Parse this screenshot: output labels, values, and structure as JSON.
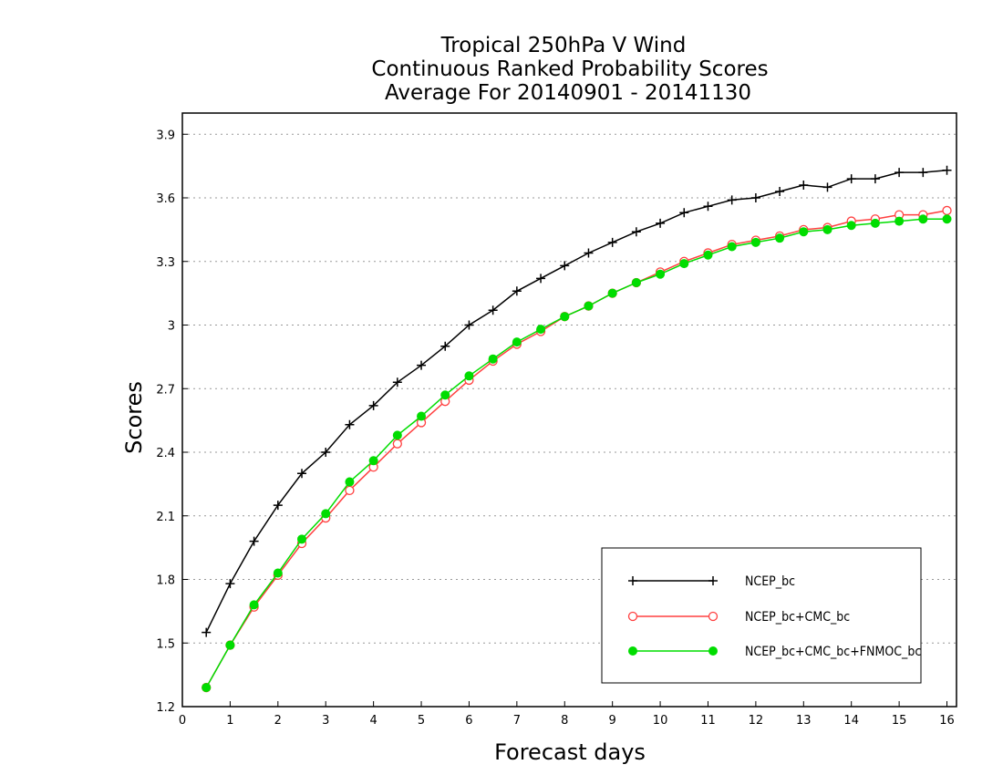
{
  "chart_data": {
    "type": "line",
    "title": [
      "Tropical 250hPa V Wind",
      "Continuous Ranked Probability Scores",
      "Average For 20140901 - 20141130"
    ],
    "xlabel": "Forecast days",
    "ylabel": "Scores",
    "xlim": [
      0,
      16.2
    ],
    "ylim": [
      1.2,
      4.0
    ],
    "xticks": [
      0,
      1,
      2,
      3,
      4,
      5,
      6,
      7,
      8,
      9,
      10,
      11,
      12,
      13,
      14,
      15,
      16
    ],
    "yticks": [
      1.2,
      1.5,
      1.8,
      2.1,
      2.4,
      2.7,
      3.0,
      3.3,
      3.6,
      3.9
    ],
    "ytick_labels": [
      "1.2",
      "1.5",
      "1.8",
      "2.1",
      "2.4",
      "2.7",
      "3",
      "3.3",
      "3.6",
      "3.9"
    ],
    "grid": "horizontal dotted",
    "legend_position": "bottom-right",
    "x": [
      0.5,
      1,
      1.5,
      2,
      2.5,
      3,
      3.5,
      4,
      4.5,
      5,
      5.5,
      6,
      6.5,
      7,
      7.5,
      8,
      8.5,
      9,
      9.5,
      10,
      10.5,
      11,
      11.5,
      12,
      12.5,
      13,
      13.5,
      14,
      14.5,
      15,
      15.5,
      16
    ],
    "series": [
      {
        "name": "NCEP_bc",
        "color": "#000000",
        "marker": "plus",
        "values": [
          1.55,
          1.78,
          1.98,
          2.15,
          2.3,
          2.4,
          2.53,
          2.62,
          2.73,
          2.81,
          2.9,
          3.0,
          3.07,
          3.16,
          3.22,
          3.28,
          3.34,
          3.39,
          3.44,
          3.48,
          3.53,
          3.56,
          3.59,
          3.6,
          3.63,
          3.66,
          3.65,
          3.69,
          3.69,
          3.72,
          3.72,
          3.73
        ]
      },
      {
        "name": "NCEP_bc+CMC_bc",
        "color": "#ff4040",
        "marker": "open-circle",
        "values": [
          1.29,
          1.49,
          1.67,
          1.82,
          1.97,
          2.09,
          2.22,
          2.33,
          2.44,
          2.54,
          2.64,
          2.74,
          2.83,
          2.91,
          2.97,
          3.04,
          3.09,
          3.15,
          3.2,
          3.25,
          3.3,
          3.34,
          3.38,
          3.4,
          3.42,
          3.45,
          3.46,
          3.49,
          3.5,
          3.52,
          3.52,
          3.54
        ]
      },
      {
        "name": "NCEP_bc+CMC_bc+FNMOC_bc",
        "color": "#00dd00",
        "marker": "filled-circle",
        "values": [
          1.29,
          1.49,
          1.68,
          1.83,
          1.99,
          2.11,
          2.26,
          2.36,
          2.48,
          2.57,
          2.67,
          2.76,
          2.84,
          2.92,
          2.98,
          3.04,
          3.09,
          3.15,
          3.2,
          3.24,
          3.29,
          3.33,
          3.37,
          3.39,
          3.41,
          3.44,
          3.45,
          3.47,
          3.48,
          3.49,
          3.5,
          3.5
        ]
      }
    ]
  }
}
